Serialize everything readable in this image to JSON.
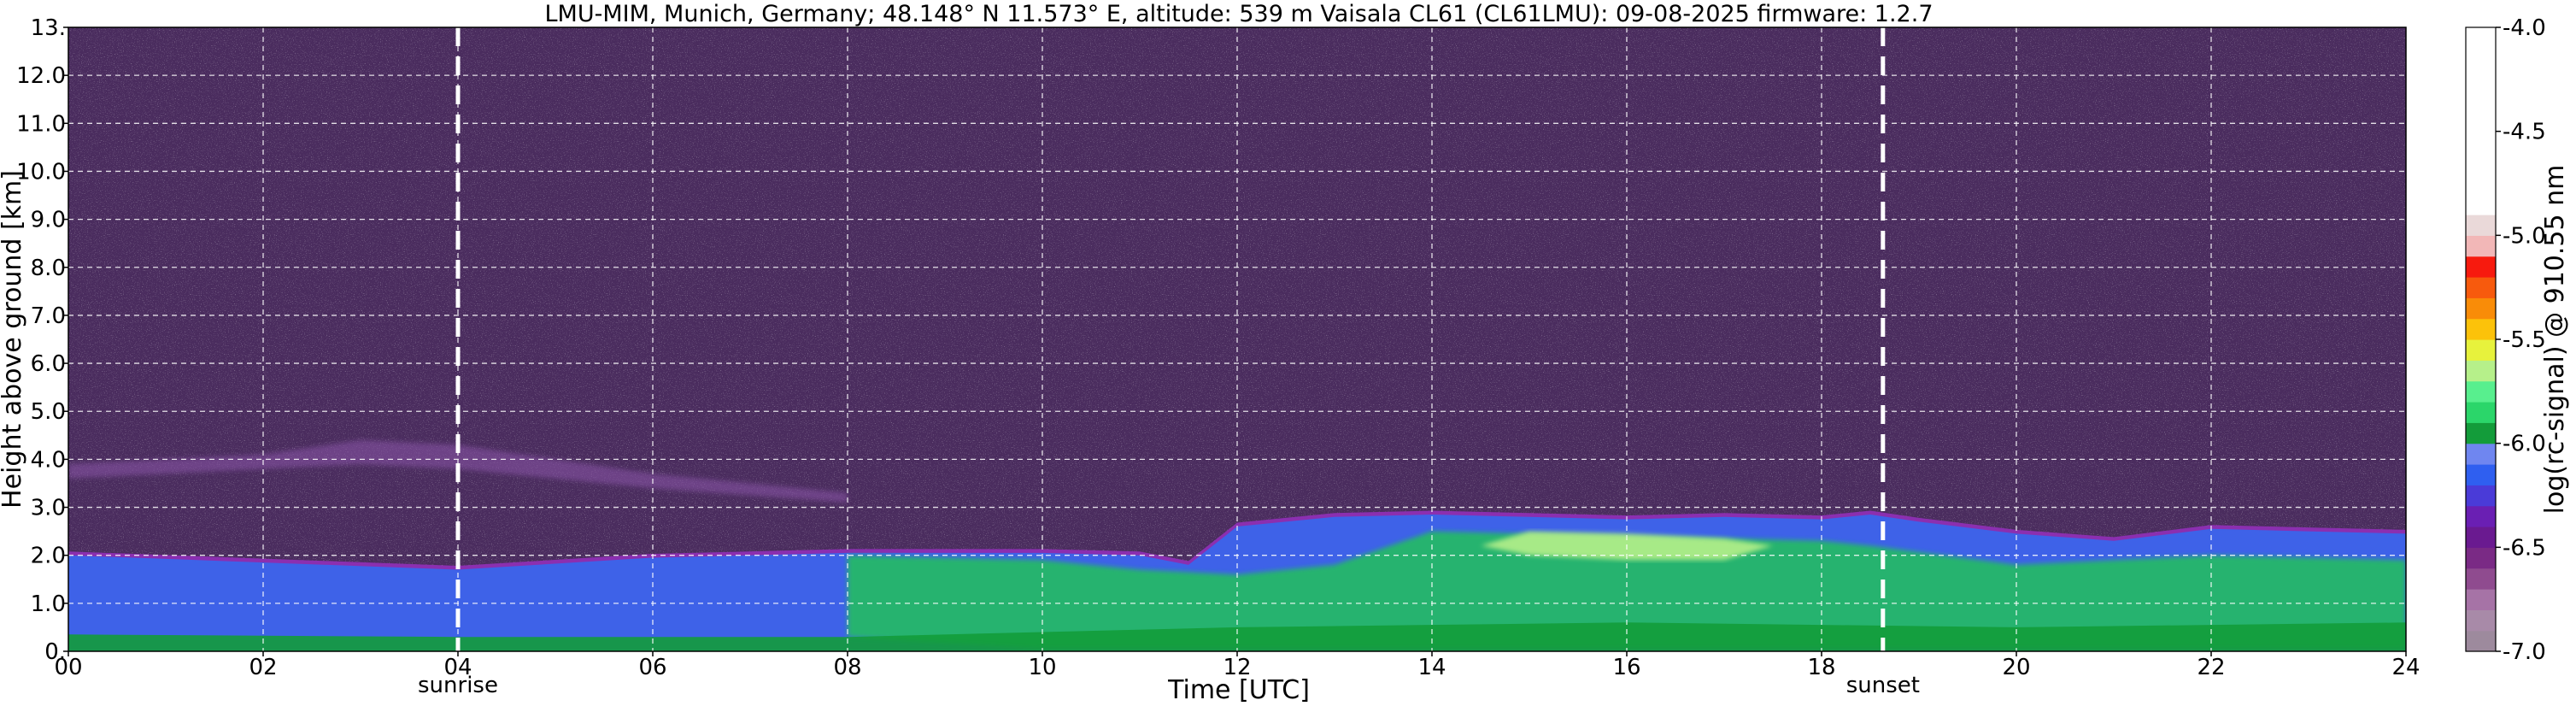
{
  "chart_data": {
    "type": "heatmap",
    "title": "LMU-MIM, Munich, Germany; 48.148° N 11.573° E, altitude: 539 m    Vaisala CL61 (CL61LMU): 09-08-2025    firmware: 1.2.7",
    "xlabel": "Time [UTC]",
    "ylabel": "Height above ground [km]",
    "colorbar_label": "log(rc-signal) @ 910.55 nm",
    "xlim": [
      0,
      24
    ],
    "ylim": [
      0,
      13
    ],
    "x_ticks": [
      {
        "value": 0,
        "label": "00"
      },
      {
        "value": 2,
        "label": "02"
      },
      {
        "value": 4,
        "label": "04"
      },
      {
        "value": 6,
        "label": "06"
      },
      {
        "value": 8,
        "label": "08"
      },
      {
        "value": 10,
        "label": "10"
      },
      {
        "value": 12,
        "label": "12"
      },
      {
        "value": 14,
        "label": "14"
      },
      {
        "value": 16,
        "label": "16"
      },
      {
        "value": 18,
        "label": "18"
      },
      {
        "value": 20,
        "label": "20"
      },
      {
        "value": 22,
        "label": "22"
      },
      {
        "value": 24,
        "label": "24"
      }
    ],
    "y_ticks": [
      {
        "value": 0,
        "label": "0."
      },
      {
        "value": 1,
        "label": "1.0"
      },
      {
        "value": 2,
        "label": "2.0"
      },
      {
        "value": 3,
        "label": "3.0"
      },
      {
        "value": 4,
        "label": "4.0"
      },
      {
        "value": 5,
        "label": "5.0"
      },
      {
        "value": 6,
        "label": "6.0"
      },
      {
        "value": 7,
        "label": "7.0"
      },
      {
        "value": 8,
        "label": "8.0"
      },
      {
        "value": 9,
        "label": "9.0"
      },
      {
        "value": 10,
        "label": "10.0"
      },
      {
        "value": 11,
        "label": "11.0"
      },
      {
        "value": 12,
        "label": "12.0"
      },
      {
        "value": 13,
        "label": "13."
      }
    ],
    "colorbar_range": [
      -7.0,
      -4.0
    ],
    "colorbar_ticks": [
      {
        "value": -4.0,
        "label": "-4.0"
      },
      {
        "value": -4.5,
        "label": "-4.5"
      },
      {
        "value": -5.0,
        "label": "-5.0"
      },
      {
        "value": -5.5,
        "label": "-5.5"
      },
      {
        "value": -6.0,
        "label": "-6.0"
      },
      {
        "value": -6.5,
        "label": "-6.5"
      },
      {
        "value": -7.0,
        "label": "-7.0"
      }
    ],
    "colorbar_levels": [
      {
        "from": -7.0,
        "to": -6.9,
        "color": "#9d8a9d"
      },
      {
        "from": -6.9,
        "to": -6.8,
        "color": "#a88aa8"
      },
      {
        "from": -6.8,
        "to": -6.7,
        "color": "#a673a6"
      },
      {
        "from": -6.7,
        "to": -6.6,
        "color": "#8f4b8f"
      },
      {
        "from": -6.6,
        "to": -6.5,
        "color": "#7a2a85"
      },
      {
        "from": -6.5,
        "to": -6.4,
        "color": "#6a1a90"
      },
      {
        "from": -6.4,
        "to": -6.3,
        "color": "#6a1fb3"
      },
      {
        "from": -6.3,
        "to": -6.2,
        "color": "#4a3bd8"
      },
      {
        "from": -6.2,
        "to": -6.1,
        "color": "#2f5ff0"
      },
      {
        "from": -6.1,
        "to": -6.0,
        "color": "#6f86f0"
      },
      {
        "from": -6.0,
        "to": -5.9,
        "color": "#139c3a"
      },
      {
        "from": -5.9,
        "to": -5.8,
        "color": "#2bd66a"
      },
      {
        "from": -5.8,
        "to": -5.7,
        "color": "#58ef8e"
      },
      {
        "from": -5.7,
        "to": -5.6,
        "color": "#b6f08a"
      },
      {
        "from": -5.6,
        "to": -5.5,
        "color": "#e7f23c"
      },
      {
        "from": -5.5,
        "to": -5.4,
        "color": "#fcc20a"
      },
      {
        "from": -5.4,
        "to": -5.3,
        "color": "#f98c08"
      },
      {
        "from": -5.3,
        "to": -5.2,
        "color": "#f75a0d"
      },
      {
        "from": -5.2,
        "to": -5.1,
        "color": "#f71a0e"
      },
      {
        "from": -5.1,
        "to": -5.0,
        "color": "#f2b7b7"
      },
      {
        "from": -5.0,
        "to": -4.9,
        "color": "#ead9d9"
      },
      {
        "from": -4.9,
        "to": -4.0,
        "color": "#ffffff"
      }
    ],
    "markers": [
      {
        "time": 4.0,
        "label": "sunrise"
      },
      {
        "time": 18.63,
        "label": "sunset"
      }
    ],
    "grid": true,
    "layers": [
      {
        "name": "background noise",
        "level": -6.6,
        "color": "#4a2c5e",
        "t": [
          0,
          24
        ],
        "h": [
          0,
          13
        ]
      },
      {
        "name": "elevated aerosol layer",
        "level": -6.7,
        "t": [
          0,
          2,
          3,
          4,
          6,
          8
        ],
        "bottom": [
          3.6,
          3.8,
          3.9,
          3.8,
          3.4,
          3.1
        ],
        "top": [
          3.9,
          4.1,
          4.4,
          4.3,
          3.7,
          3.3
        ]
      },
      {
        "name": "boundary layer top",
        "t": [
          0,
          2,
          4,
          6,
          8,
          10,
          11,
          11.5,
          12,
          13,
          14,
          15,
          16,
          17,
          18,
          18.5,
          19,
          20,
          21,
          22,
          23,
          24
        ],
        "top": [
          2.0,
          1.85,
          1.7,
          1.95,
          2.05,
          2.05,
          2.0,
          1.8,
          2.6,
          2.8,
          2.85,
          2.8,
          2.75,
          2.8,
          2.75,
          2.85,
          2.7,
          2.45,
          2.3,
          2.55,
          2.5,
          2.45
        ]
      }
    ]
  }
}
